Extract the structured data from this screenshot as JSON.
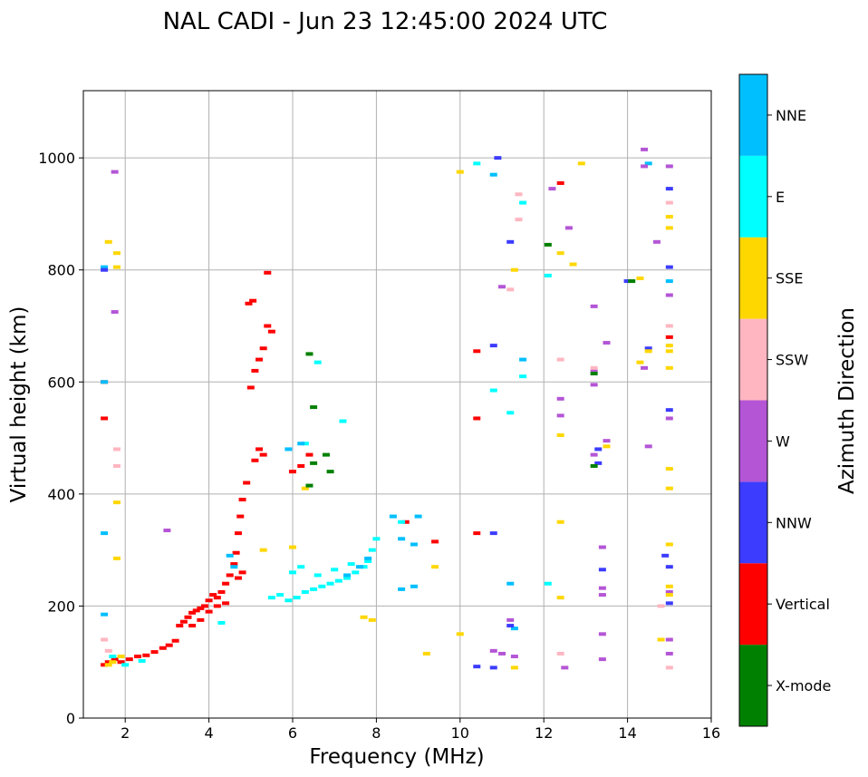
{
  "chart_data": {
    "type": "scatter",
    "title": "NAL CADI - Jun 23 12:45:00 2024 UTC",
    "xlabel": "Frequency (MHz)",
    "ylabel": "Virtual height (km)",
    "xlim": [
      1,
      16
    ],
    "ylim": [
      0,
      1120
    ],
    "xticks": [
      2,
      4,
      6,
      8,
      10,
      12,
      14,
      16
    ],
    "yticks": [
      0,
      200,
      400,
      600,
      800,
      1000
    ],
    "grid": true,
    "colorbar": {
      "title": "Azimuth Direction",
      "categories": [
        {
          "name": "X-mode",
          "color": "#008000"
        },
        {
          "name": "Vertical",
          "color": "#ff0000"
        },
        {
          "name": "NNW",
          "color": "#3c3cff"
        },
        {
          "name": "W",
          "color": "#b455d6"
        },
        {
          "name": "SSW",
          "color": "#ffb6c1"
        },
        {
          "name": "SSE",
          "color": "#ffd700"
        },
        {
          "name": "E",
          "color": "#00ffff"
        },
        {
          "name": "NNE",
          "color": "#00bfff"
        }
      ]
    },
    "series": [
      {
        "name": "Vertical",
        "points": [
          [
            1.5,
            95
          ],
          [
            1.6,
            100
          ],
          [
            1.75,
            105
          ],
          [
            1.9,
            100
          ],
          [
            2.1,
            105
          ],
          [
            2.3,
            110
          ],
          [
            2.5,
            112
          ],
          [
            2.7,
            118
          ],
          [
            2.9,
            125
          ],
          [
            3.05,
            130
          ],
          [
            3.2,
            138
          ],
          [
            3.3,
            165
          ],
          [
            3.4,
            172
          ],
          [
            3.5,
            180
          ],
          [
            3.6,
            188
          ],
          [
            3.7,
            192
          ],
          [
            3.8,
            196
          ],
          [
            3.9,
            200
          ],
          [
            4.0,
            210
          ],
          [
            4.1,
            220
          ],
          [
            4.2,
            215
          ],
          [
            4.3,
            225
          ],
          [
            4.4,
            240
          ],
          [
            4.5,
            255
          ],
          [
            4.6,
            275
          ],
          [
            4.65,
            295
          ],
          [
            4.7,
            330
          ],
          [
            4.75,
            360
          ],
          [
            4.8,
            390
          ],
          [
            4.9,
            420
          ],
          [
            5.0,
            590
          ],
          [
            5.1,
            620
          ],
          [
            5.2,
            640
          ],
          [
            5.3,
            660
          ],
          [
            5.4,
            700
          ],
          [
            5.5,
            690
          ],
          [
            4.95,
            740
          ],
          [
            5.05,
            745
          ],
          [
            5.4,
            795
          ],
          [
            6.0,
            440
          ],
          [
            6.2,
            450
          ],
          [
            6.4,
            470
          ],
          [
            4.7,
            250
          ],
          [
            4.8,
            260
          ],
          [
            5.1,
            460
          ],
          [
            5.2,
            480
          ],
          [
            5.3,
            470
          ],
          [
            1.5,
            535
          ],
          [
            1.5,
            600
          ],
          [
            10.4,
            655
          ],
          [
            10.4,
            535
          ],
          [
            10.4,
            330
          ],
          [
            12.4,
            955
          ],
          [
            15.0,
            680
          ],
          [
            9.4,
            315
          ],
          [
            8.7,
            350
          ],
          [
            3.6,
            165
          ],
          [
            3.8,
            175
          ],
          [
            4.0,
            190
          ],
          [
            4.2,
            200
          ],
          [
            4.4,
            205
          ]
        ]
      },
      {
        "name": "E",
        "points": [
          [
            5.5,
            215
          ],
          [
            5.7,
            220
          ],
          [
            5.9,
            210
          ],
          [
            6.1,
            215
          ],
          [
            6.3,
            225
          ],
          [
            6.5,
            230
          ],
          [
            6.7,
            235
          ],
          [
            6.9,
            240
          ],
          [
            7.1,
            245
          ],
          [
            7.3,
            250
          ],
          [
            7.5,
            260
          ],
          [
            7.7,
            270
          ],
          [
            7.8,
            280
          ],
          [
            6.0,
            260
          ],
          [
            6.2,
            270
          ],
          [
            6.6,
            255
          ],
          [
            7.0,
            265
          ],
          [
            7.4,
            275
          ],
          [
            7.9,
            300
          ],
          [
            8.0,
            320
          ],
          [
            6.3,
            490
          ],
          [
            6.6,
            635
          ],
          [
            7.2,
            530
          ],
          [
            10.4,
            990
          ],
          [
            11.5,
            920
          ],
          [
            11.2,
            545
          ],
          [
            10.8,
            585
          ],
          [
            11.5,
            610
          ],
          [
            12.1,
            790
          ],
          [
            12.1,
            240
          ],
          [
            2.0,
            95
          ],
          [
            2.4,
            102
          ],
          [
            1.7,
            110
          ],
          [
            8.6,
            350
          ],
          [
            4.3,
            170
          ]
        ]
      },
      {
        "name": "NNE",
        "points": [
          [
            1.5,
            185
          ],
          [
            1.5,
            330
          ],
          [
            1.5,
            805
          ],
          [
            1.5,
            600
          ],
          [
            4.5,
            290
          ],
          [
            4.6,
            270
          ],
          [
            5.9,
            480
          ],
          [
            6.2,
            490
          ],
          [
            7.3,
            255
          ],
          [
            7.6,
            270
          ],
          [
            7.8,
            285
          ],
          [
            8.4,
            360
          ],
          [
            8.6,
            320
          ],
          [
            8.9,
            310
          ],
          [
            9.0,
            360
          ],
          [
            8.6,
            230
          ],
          [
            8.9,
            235
          ],
          [
            10.8,
            970
          ],
          [
            11.2,
            240
          ],
          [
            11.3,
            160
          ],
          [
            11.5,
            640
          ],
          [
            14.5,
            990
          ],
          [
            15.0,
            780
          ]
        ]
      },
      {
        "name": "NNW",
        "points": [
          [
            1.5,
            800
          ],
          [
            10.8,
            330
          ],
          [
            10.8,
            665
          ],
          [
            10.9,
            1000
          ],
          [
            11.2,
            850
          ],
          [
            10.4,
            92
          ],
          [
            11.2,
            165
          ],
          [
            13.4,
            265
          ],
          [
            14.5,
            660
          ],
          [
            15.0,
            945
          ],
          [
            15.0,
            805
          ],
          [
            15.0,
            550
          ],
          [
            15.0,
            270
          ],
          [
            14.9,
            290
          ],
          [
            15.0,
            205
          ],
          [
            14.0,
            780
          ],
          [
            13.3,
            480
          ],
          [
            13.3,
            455
          ],
          [
            10.8,
            90
          ]
        ]
      },
      {
        "name": "W",
        "points": [
          [
            1.75,
            975
          ],
          [
            1.75,
            725
          ],
          [
            3.0,
            335
          ],
          [
            10.8,
            120
          ],
          [
            11.0,
            115
          ],
          [
            11.2,
            175
          ],
          [
            11.3,
            110
          ],
          [
            11.0,
            770
          ],
          [
            12.2,
            945
          ],
          [
            12.4,
            570
          ],
          [
            12.4,
            540
          ],
          [
            12.6,
            875
          ],
          [
            12.5,
            90
          ],
          [
            13.2,
            735
          ],
          [
            13.2,
            620
          ],
          [
            13.2,
            595
          ],
          [
            13.2,
            470
          ],
          [
            13.4,
            150
          ],
          [
            13.4,
            105
          ],
          [
            13.5,
            670
          ],
          [
            13.5,
            495
          ],
          [
            13.4,
            305
          ],
          [
            13.4,
            232
          ],
          [
            13.4,
            220
          ],
          [
            14.4,
            1015
          ],
          [
            14.4,
            985
          ],
          [
            14.4,
            625
          ],
          [
            14.5,
            485
          ],
          [
            14.7,
            850
          ],
          [
            15.0,
            985
          ],
          [
            15.0,
            755
          ],
          [
            15.0,
            535
          ],
          [
            15.0,
            225
          ],
          [
            15.0,
            140
          ],
          [
            15.0,
            115
          ]
        ]
      },
      {
        "name": "SSW",
        "points": [
          [
            1.8,
            480
          ],
          [
            1.8,
            450
          ],
          [
            1.5,
            140
          ],
          [
            1.6,
            120
          ],
          [
            11.4,
            935
          ],
          [
            11.4,
            890
          ],
          [
            11.2,
            765
          ],
          [
            12.4,
            640
          ],
          [
            12.4,
            115
          ],
          [
            13.2,
            625
          ],
          [
            15.0,
            920
          ],
          [
            15.0,
            700
          ],
          [
            15.0,
            90
          ],
          [
            14.8,
            200
          ]
        ]
      },
      {
        "name": "SSE",
        "points": [
          [
            1.6,
            850
          ],
          [
            1.8,
            830
          ],
          [
            1.8,
            805
          ],
          [
            1.8,
            385
          ],
          [
            1.8,
            285
          ],
          [
            1.6,
            95
          ],
          [
            1.7,
            100
          ],
          [
            1.9,
            110
          ],
          [
            7.7,
            180
          ],
          [
            7.9,
            175
          ],
          [
            9.2,
            115
          ],
          [
            9.4,
            270
          ],
          [
            10.0,
            975
          ],
          [
            10.0,
            150
          ],
          [
            11.3,
            800
          ],
          [
            11.3,
            90
          ],
          [
            12.4,
            350
          ],
          [
            12.4,
            215
          ],
          [
            12.4,
            505
          ],
          [
            12.4,
            830
          ],
          [
            12.7,
            810
          ],
          [
            12.9,
            990
          ],
          [
            13.5,
            485
          ],
          [
            14.3,
            635
          ],
          [
            14.3,
            785
          ],
          [
            14.5,
            655
          ],
          [
            14.8,
            140
          ],
          [
            15.0,
            895
          ],
          [
            15.0,
            875
          ],
          [
            15.0,
            665
          ],
          [
            15.0,
            655
          ],
          [
            15.0,
            625
          ],
          [
            15.0,
            445
          ],
          [
            15.0,
            410
          ],
          [
            15.0,
            310
          ],
          [
            15.0,
            235
          ],
          [
            15.0,
            220
          ],
          [
            6.0,
            305
          ],
          [
            6.3,
            410
          ],
          [
            5.3,
            300
          ]
        ]
      },
      {
        "name": "X-mode",
        "points": [
          [
            6.4,
            650
          ],
          [
            6.5,
            555
          ],
          [
            6.8,
            470
          ],
          [
            6.5,
            455
          ],
          [
            6.9,
            440
          ],
          [
            6.4,
            415
          ],
          [
            12.1,
            845
          ],
          [
            13.2,
            450
          ],
          [
            13.2,
            615
          ],
          [
            14.1,
            780
          ]
        ]
      }
    ]
  }
}
